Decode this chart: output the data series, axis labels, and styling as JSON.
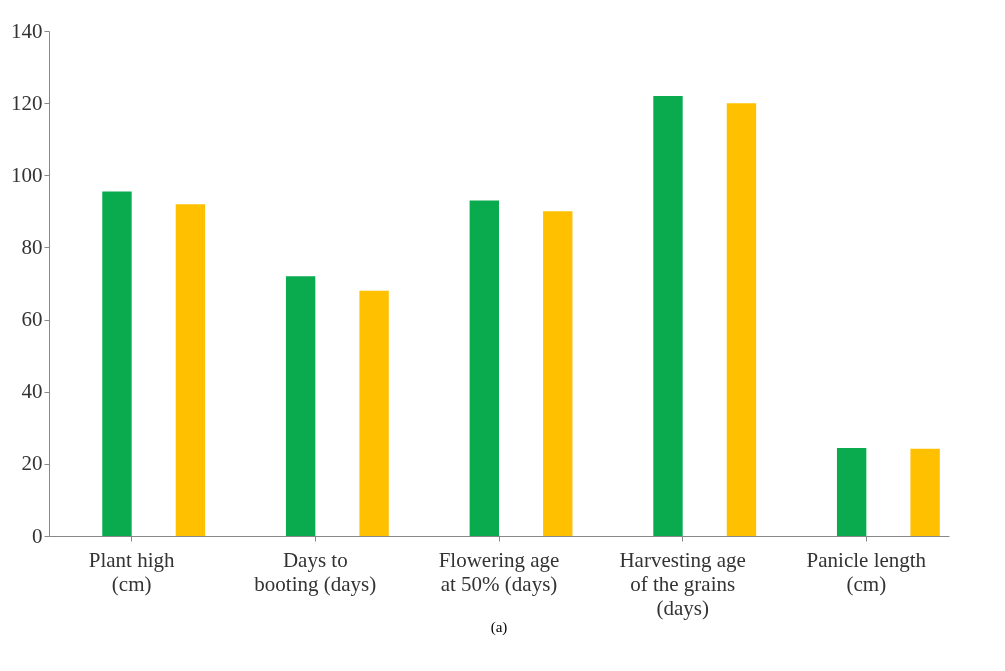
{
  "chart_data": {
    "type": "bar",
    "categories": [
      "Plant high (cm)",
      "Days to booting (days)",
      "Flowering age at 50% (days)",
      "Harvesting age of the grains (days)",
      "Panicle length (cm)"
    ],
    "series": [
      {
        "color": "#0aaa4f",
        "values": [
          95.5,
          72,
          93,
          122,
          24.4
        ]
      },
      {
        "color": "#ffc000",
        "values": [
          92,
          68,
          90,
          120,
          24.2
        ]
      }
    ],
    "ylim": [
      0,
      140
    ],
    "yticks": [
      0,
      20,
      40,
      60,
      80,
      100,
      120,
      140
    ],
    "grid": false,
    "legend": false,
    "annotations": [
      "(a)"
    ]
  }
}
